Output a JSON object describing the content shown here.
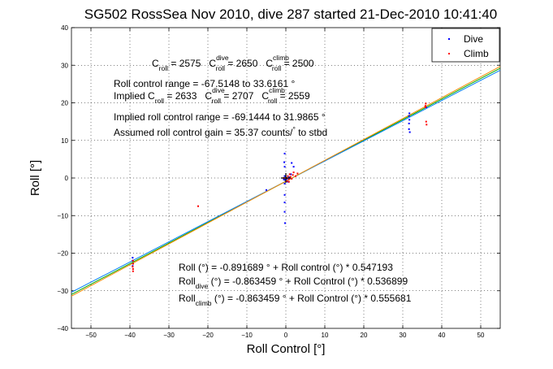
{
  "chart_data": {
    "type": "scatter",
    "title": "SG502 RossSea Nov 2010, dive 287 started 21-Dec-2010 10:41:40",
    "xlabel": "Roll Control [°]",
    "ylabel": "Roll [°]",
    "xlim": [
      -55,
      55
    ],
    "ylim": [
      -40,
      40
    ],
    "xticks": [
      -50,
      -40,
      -30,
      -20,
      -10,
      0,
      10,
      20,
      30,
      40,
      50
    ],
    "yticks": [
      -40,
      -30,
      -20,
      -10,
      0,
      10,
      20,
      30,
      40
    ],
    "grid": true,
    "legend_position": "top-right",
    "legend": [
      {
        "label": "Dive",
        "color": "#0000ff"
      },
      {
        "label": "Climb",
        "color": "#ff0000"
      }
    ],
    "series": [
      {
        "name": "Dive",
        "color": "#0000ff",
        "points": [
          [
            -39.3,
            -21.2
          ],
          [
            -39.3,
            -22.0
          ],
          [
            -39.2,
            -22.8
          ],
          [
            -39.3,
            -23.4
          ],
          [
            -5.0,
            -3.2
          ],
          [
            -0.3,
            6.5
          ],
          [
            -0.4,
            4.2
          ],
          [
            -0.3,
            3.0
          ],
          [
            -0.3,
            0.5
          ],
          [
            -0.2,
            -0.5
          ],
          [
            -0.3,
            -1.5
          ],
          [
            -0.3,
            -4.5
          ],
          [
            -0.3,
            -6.5
          ],
          [
            -0.3,
            -9.0
          ],
          [
            -0.2,
            -12.0
          ],
          [
            0.5,
            -1.0
          ],
          [
            0.8,
            0.2
          ],
          [
            1.3,
            1.0
          ],
          [
            1.5,
            4.0
          ],
          [
            2.0,
            3.0
          ],
          [
            0.3,
            -0.2
          ],
          [
            -0.5,
            -0.4
          ],
          [
            31.6,
            13.0
          ],
          [
            31.6,
            14.5
          ],
          [
            31.7,
            15.5
          ],
          [
            31.6,
            16.5
          ],
          [
            31.7,
            17.2
          ],
          [
            31.8,
            12.2
          ],
          [
            36.0,
            18.8
          ]
        ]
      },
      {
        "name": "Climb",
        "color": "#ff0000",
        "points": [
          [
            -39.2,
            -22.0
          ],
          [
            -39.2,
            -22.8
          ],
          [
            -39.3,
            -23.6
          ],
          [
            -39.2,
            -24.2
          ],
          [
            -39.2,
            -24.8
          ],
          [
            -22.5,
            -7.5
          ],
          [
            0.2,
            0.0
          ],
          [
            0.5,
            0.5
          ],
          [
            0.8,
            -0.3
          ],
          [
            1.2,
            0.3
          ],
          [
            1.5,
            -0.2
          ],
          [
            1.8,
            0.8
          ],
          [
            2.0,
            1.5
          ],
          [
            2.5,
            0.5
          ],
          [
            3.0,
            1.2
          ],
          [
            0.3,
            -0.8
          ],
          [
            0.8,
            -1.0
          ],
          [
            1.0,
            1.0
          ],
          [
            -0.5,
            0.0
          ],
          [
            35.8,
            19.2
          ],
          [
            35.9,
            19.8
          ],
          [
            35.8,
            18.8
          ],
          [
            36.0,
            15.0
          ],
          [
            36.1,
            14.2
          ]
        ]
      }
    ],
    "fit_lines": [
      {
        "name": "all",
        "intercept": -0.891689,
        "slope": 0.547193,
        "color": "#00aa00"
      },
      {
        "name": "dive",
        "intercept": -0.863459,
        "slope": 0.536899,
        "color": "#0080ff"
      },
      {
        "name": "climb",
        "intercept": -0.863459,
        "slope": 0.555681,
        "color": "#ff8c00"
      }
    ],
    "zero_marker": {
      "x": 0,
      "y": 0,
      "color": "#000000"
    }
  },
  "annotations": {
    "line1": {
      "c1": "C",
      "c1_sub": "roll",
      "c1_val": " = 2575",
      "c2": "C",
      "c2_sup": "dive",
      "c2_sub": "roll",
      "c2_val": " = 2650",
      "c3": "C",
      "c3_sup": "climb",
      "c3_sub": "roll",
      "c3_val": " = 2500"
    },
    "line2": "Roll control range = -67.5148 to 33.6161 °",
    "line3": {
      "pre": "Implied C",
      "c1_sub": "roll",
      "c1_val": " = 2633",
      "c2": "C",
      "c2_sup": "dive",
      "c2_sub": "roll",
      "c2_val": " = 2707",
      "c3": "C",
      "c3_sup": "climb",
      "c3_sub": "roll",
      "c3_val": " = 2559"
    },
    "line4": "Implied roll control range = -69.1444 to 31.9865 °",
    "line5": {
      "pre": "Assumed roll control gain = 35.37 counts/",
      "deg": "°",
      "post": " to stbd"
    },
    "eq1": "Roll (°) = -0.891689 ° + Roll control (°) * 0.547193",
    "eq2": {
      "pre": "Roll",
      "sub": "dive",
      "post": " (°) = -0.863459 ° + Roll Control (°) * 0.536899"
    },
    "eq3": {
      "pre": "Roll",
      "sub": "climb",
      "post": " (°) = -0.863459 ° + Roll Control (°) * 0.555681"
    }
  }
}
